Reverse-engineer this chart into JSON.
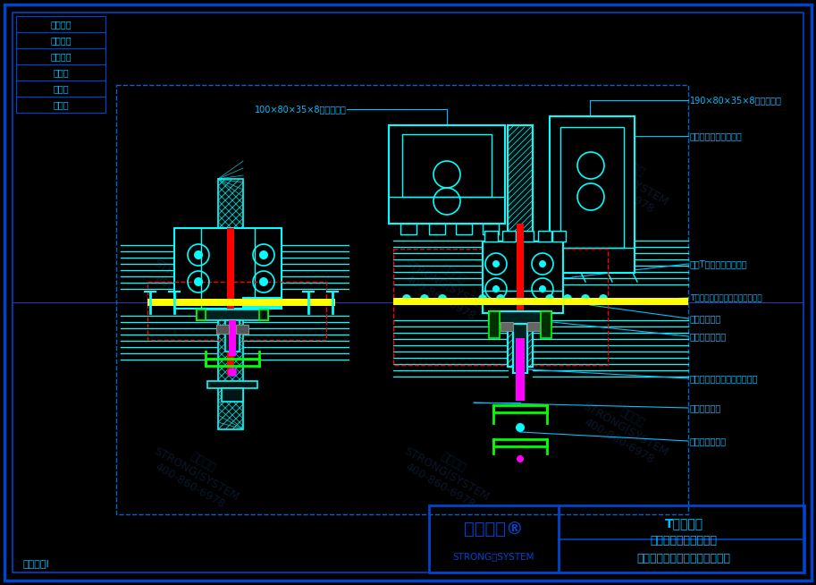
{
  "bg_color": "#000000",
  "border_color": "#0044CC",
  "draw_color": "#00FFFF",
  "red_color": "#FF0000",
  "green_color": "#00FF00",
  "yellow_color": "#FFFF00",
  "magenta_color": "#FF00FF",
  "purple_color": "#8B008B",
  "label_color": "#00BFFF",
  "hatch_color": "#00CCCC",
  "brand_color": "#0055FF",
  "features": [
    "安全防火",
    "环保节能",
    "超级防腔",
    "大跨度",
    "大通测",
    "更纯粹"
  ],
  "brand": "西创系统®",
  "brand_sub": "STRONG｜SYSTEM",
  "title1": "T型精制锤",
  "title2": "垂明横隐玻璃幕墙系统",
  "company": "西创金属科技（江苏）有限公司",
  "patent": "专利产品I",
  "wm_text": "西创系统",
  "ann_beam": "100×80×35×8凸型锤横梁",
  "ann_col": "190×80×35×8凸型锤立柱",
  "ann_bolt": "扳其装饰盖母螺栓组合",
  "ann_weld": "焊接T型横梁插芯连接件",
  "ann_tconn": "T型立柱、横梁连接件、玻璃托板",
  "ann_rubber1": "橡胶隔热垫皮",
  "ann_alum": "铝合金型材端头",
  "ann_screw": "公母螺栓（专利、连续紧接）",
  "ann_rubber2": "橡胶隔热垫块",
  "ann_steel": "不锈锤机制螺栓"
}
